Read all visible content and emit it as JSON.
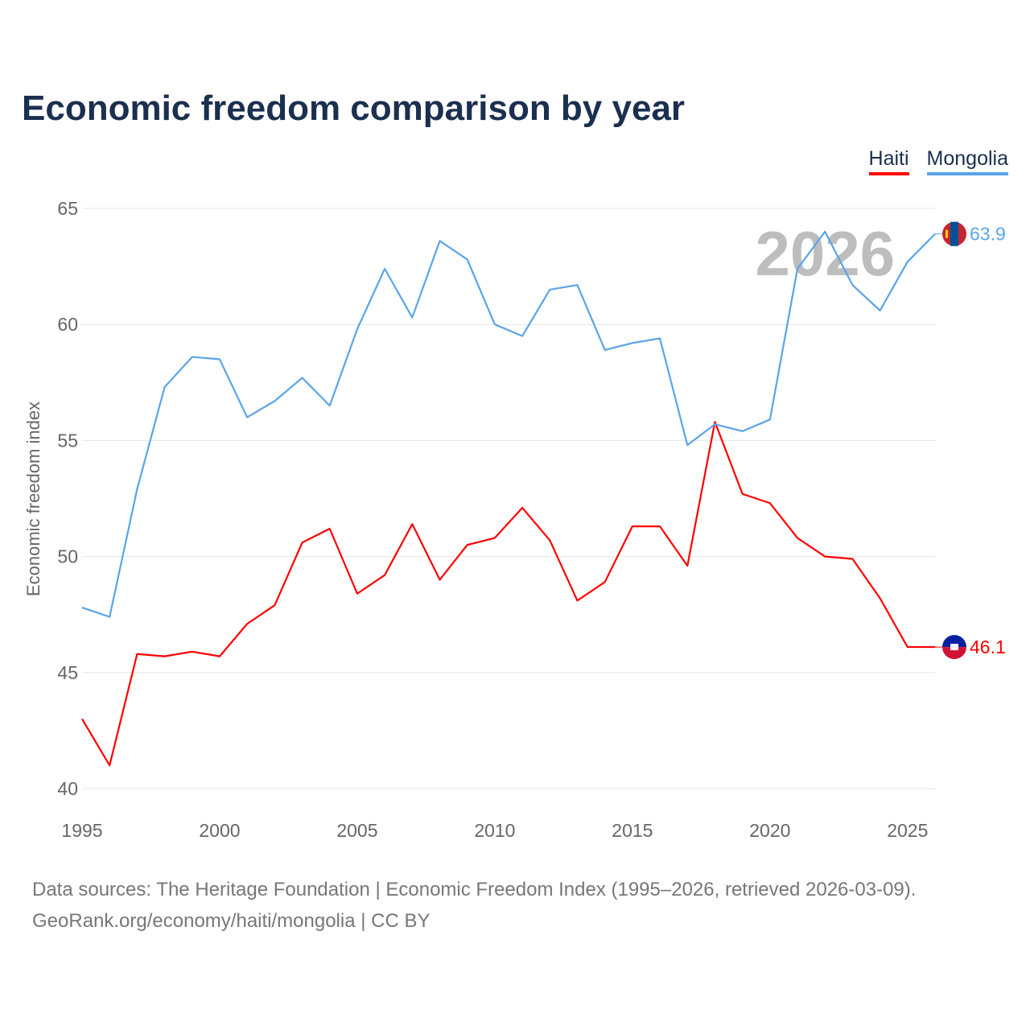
{
  "chart_data": {
    "type": "line",
    "title": "Economic freedom comparison by year",
    "xlabel": "",
    "ylabel": "Economic freedom index",
    "xlim": [
      1995,
      2026
    ],
    "ylim": [
      40,
      65
    ],
    "yticks": [
      40,
      45,
      50,
      55,
      60,
      65
    ],
    "xticks": [
      1995,
      2000,
      2005,
      2010,
      2015,
      2020,
      2025
    ],
    "grid": true,
    "legend_position": "top-right",
    "year_watermark": "2026",
    "x": [
      1995,
      1996,
      1997,
      1998,
      1999,
      2000,
      2001,
      2002,
      2003,
      2004,
      2005,
      2006,
      2007,
      2008,
      2009,
      2010,
      2011,
      2012,
      2013,
      2014,
      2015,
      2016,
      2017,
      2018,
      2019,
      2020,
      2021,
      2022,
      2023,
      2024,
      2025,
      2026
    ],
    "series": [
      {
        "name": "Haiti",
        "color": "#ff0000",
        "end_label": "46.1",
        "values": [
          43.0,
          41.0,
          45.8,
          45.7,
          45.9,
          45.7,
          47.1,
          47.9,
          50.6,
          51.2,
          48.4,
          49.2,
          51.4,
          49.0,
          50.5,
          50.8,
          52.1,
          50.7,
          48.1,
          48.9,
          51.3,
          51.3,
          49.6,
          55.8,
          52.7,
          52.3,
          50.8,
          50.0,
          49.9,
          48.2,
          46.1,
          46.1
        ]
      },
      {
        "name": "Mongolia",
        "color": "#5aa4ea",
        "end_label": "63.9",
        "values": [
          47.8,
          47.4,
          52.9,
          57.3,
          58.6,
          58.5,
          56.0,
          56.7,
          57.7,
          56.5,
          59.8,
          62.4,
          60.3,
          63.6,
          62.8,
          60.0,
          59.5,
          61.5,
          61.7,
          58.9,
          59.2,
          59.4,
          54.8,
          55.7,
          55.4,
          55.9,
          62.4,
          64.0,
          61.7,
          60.6,
          62.7,
          63.9
        ]
      }
    ]
  },
  "footer": {
    "line1": "Data sources: The Heritage Foundation | Economic Freedom Index (1995–2026, retrieved 2026-03-09).",
    "line2": "GeoRank.org/economy/haiti/mongolia | CC BY"
  }
}
